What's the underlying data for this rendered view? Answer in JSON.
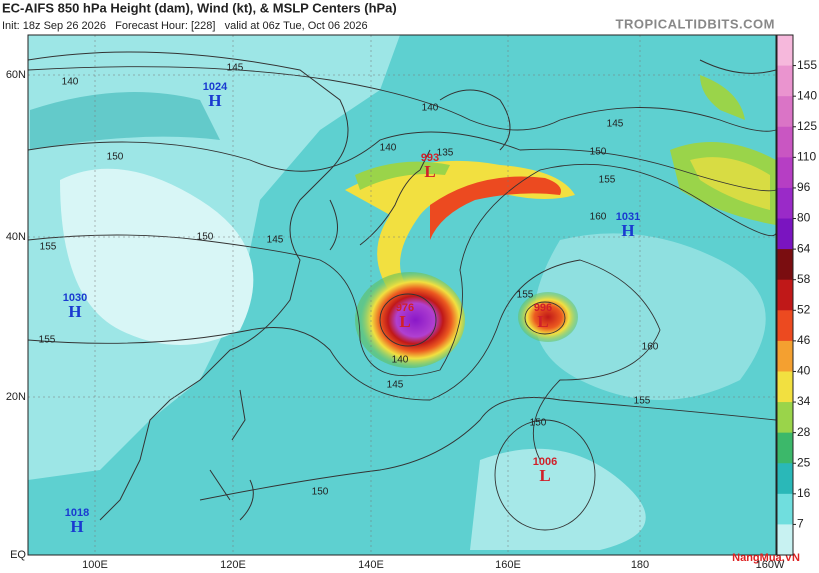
{
  "header": {
    "title": "EC-AIFS 850 hPa Height (dam), Wind (kt), & MSLP Centers (hPa)",
    "subtitle": "Init: 18z Sep 26 2026   Forecast Hour: [228]   valid at 06z Tue, Oct 06 2026",
    "site": "TROPICALTIDBITS.COM"
  },
  "map": {
    "lat_labels": [
      "60N",
      "40N",
      "20N",
      "EQ"
    ],
    "lon_labels": [
      "100E",
      "120E",
      "140E",
      "160E",
      "180",
      "160W"
    ],
    "pressure_centers": [
      {
        "value": "1024",
        "type": "H"
      },
      {
        "value": "1030",
        "type": "H"
      },
      {
        "value": "1018",
        "type": "H"
      },
      {
        "value": "993",
        "type": "L"
      },
      {
        "value": "976",
        "type": "L"
      },
      {
        "value": "996",
        "type": "L"
      },
      {
        "value": "1031",
        "type": "H"
      },
      {
        "value": "1006",
        "type": "L"
      }
    ],
    "contour_labels": [
      "145",
      "140",
      "140",
      "150",
      "145",
      "150",
      "155",
      "135",
      "140",
      "160",
      "155",
      "150",
      "145",
      "155",
      "160",
      "145",
      "140",
      "155",
      "150",
      "150",
      "155"
    ]
  },
  "colorbar": {
    "labels": [
      155,
      140,
      125,
      110,
      96,
      80,
      64,
      58,
      52,
      46,
      40,
      34,
      28,
      25,
      16,
      7
    ],
    "colors": [
      "#f6b8dc",
      "#ea94cf",
      "#da74c6",
      "#c956c2",
      "#b63ec4",
      "#9a2ac8",
      "#7a14c0",
      "#7a0d10",
      "#c01818",
      "#ec4a20",
      "#f4a030",
      "#f2e040",
      "#9ad44a",
      "#3cb86a",
      "#2ab8b8",
      "#70dede",
      "#c8f2f2"
    ]
  },
  "watermark": "NangMua.VN"
}
